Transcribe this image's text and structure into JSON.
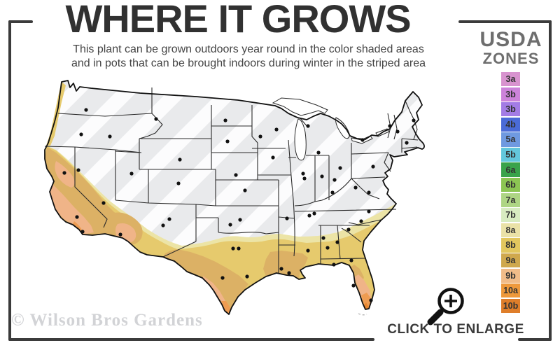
{
  "header": {
    "title": "WHERE IT GROWS",
    "subtitle_line1": "This plant can be grown outdoors year round in the color shaded areas",
    "subtitle_line2": "and in pots that can be brought indoors during winter in the striped area"
  },
  "legend": {
    "title_line1": "USDA",
    "title_line2": "ZONES",
    "zones": [
      {
        "label": "3a",
        "color": "#d893cf"
      },
      {
        "label": "3b",
        "color": "#cc83da"
      },
      {
        "label": "3b",
        "color": "#a37ce5"
      },
      {
        "label": "4b",
        "color": "#4a6bd7"
      },
      {
        "label": "5a",
        "color": "#6f99e0"
      },
      {
        "label": "5b",
        "color": "#63c7dc"
      },
      {
        "label": "6a",
        "color": "#39a34a"
      },
      {
        "label": "6b",
        "color": "#8cc553"
      },
      {
        "label": "7a",
        "color": "#aed584"
      },
      {
        "label": "7b",
        "color": "#d8ecc1"
      },
      {
        "label": "8a",
        "color": "#eae2a7"
      },
      {
        "label": "8b",
        "color": "#e2c75e"
      },
      {
        "label": "9a",
        "color": "#cfa84d"
      },
      {
        "label": "9b",
        "color": "#f1bc89"
      },
      {
        "label": "10a",
        "color": "#ee993c"
      },
      {
        "label": "10b",
        "color": "#df7e2a"
      }
    ]
  },
  "map": {
    "striped_area_meaning": "striped area",
    "band_colors": {
      "stripe_base": "#e9eaec",
      "stripe_bar": "#fcfcfd",
      "zone8a": "#ece4a6",
      "zone8b": "#e6ca6d",
      "zone9a": "#dcb165",
      "zone9b": "#f0b488",
      "zone10a": "#ee9c52",
      "zone10b": "#e8862f",
      "state_border": "#2a2a2a",
      "city_dot": "#111111"
    }
  },
  "footer": {
    "watermark": "© Wilson Bros Gardens",
    "enlarge_label": "CLICK TO ENLARGE",
    "enlarge_icon": "magnifier-plus-icon"
  }
}
